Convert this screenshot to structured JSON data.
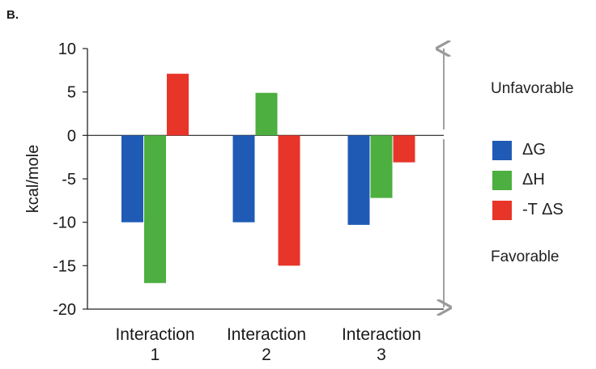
{
  "panel_label": "B.",
  "annotations": {
    "unfavorable": "Unfavorable",
    "favorable": "Favorable"
  },
  "chart_data": {
    "type": "bar",
    "title": "",
    "xlabel": "",
    "ylabel": "kcal/mole",
    "ylim": [
      -20,
      10
    ],
    "yticks": [
      "10",
      "5",
      "0",
      "-5",
      "-10",
      "-15",
      "-20"
    ],
    "grid": false,
    "legend_position": "right",
    "categories": [
      [
        "Interaction",
        "1"
      ],
      [
        "Interaction",
        "2"
      ],
      [
        "Interaction",
        "3"
      ]
    ],
    "series": [
      {
        "name": "ΔG",
        "color": "#1f5bb5",
        "values": [
          -10,
          -10,
          -10.3
        ]
      },
      {
        "name": "ΔH",
        "color": "#4caf3f",
        "values": [
          -17,
          4.9,
          -7.2
        ]
      },
      {
        "name": "-T ΔS",
        "color": "#e8352a",
        "values": [
          7.1,
          -15,
          -3.1
        ]
      }
    ]
  }
}
